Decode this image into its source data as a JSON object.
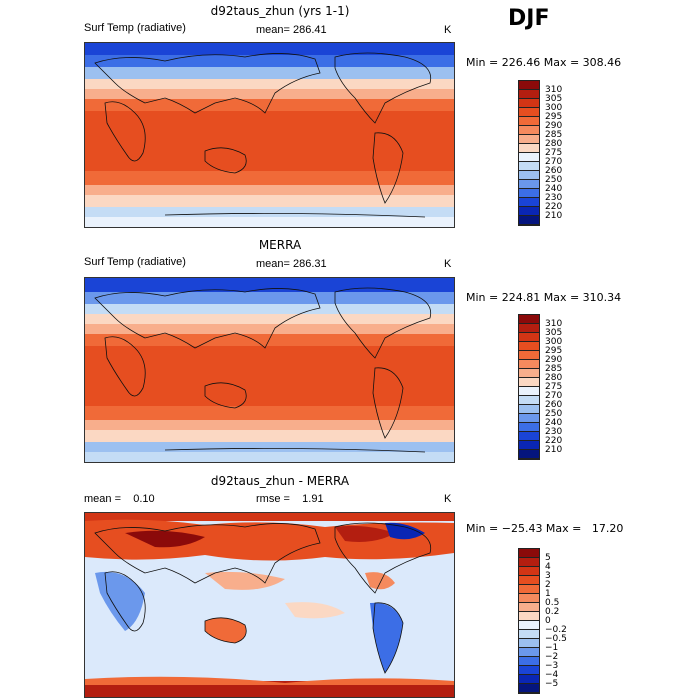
{
  "season": "DJF",
  "panels": [
    {
      "title": "d92taus_zhun (yrs 1-1)",
      "variable": "Surf Temp (radiative)",
      "stat": "mean= 286.41",
      "units": "K",
      "minmax": "Min = 226.46 Max = 308.46",
      "colorbar": {
        "labels": [
          "310",
          "305",
          "300",
          "295",
          "290",
          "285",
          "280",
          "275",
          "270",
          "260",
          "250",
          "240",
          "230",
          "220",
          "210"
        ],
        "colors": [
          "#8b0a0a",
          "#b31e10",
          "#d23515",
          "#e64e20",
          "#f06a38",
          "#f58a5e",
          "#f8ae8c",
          "#fbd8c3",
          "#eaf2fc",
          "#c4dcf5",
          "#9cc0f0",
          "#6b98ec",
          "#3c6ee6",
          "#1a44d6",
          "#0a26b4",
          "#05157e"
        ]
      }
    },
    {
      "title": "MERRA",
      "variable": "Surf Temp (radiative)",
      "stat": "mean= 286.31",
      "units": "K",
      "minmax": "Min = 224.81 Max = 310.34",
      "colorbar": {
        "labels": [
          "310",
          "305",
          "300",
          "295",
          "290",
          "285",
          "280",
          "275",
          "270",
          "260",
          "250",
          "240",
          "230",
          "220",
          "210"
        ],
        "colors": [
          "#8b0a0a",
          "#b31e10",
          "#d23515",
          "#e64e20",
          "#f06a38",
          "#f58a5e",
          "#f8ae8c",
          "#fbd8c3",
          "#eaf2fc",
          "#c4dcf5",
          "#9cc0f0",
          "#6b98ec",
          "#3c6ee6",
          "#1a44d6",
          "#0a26b4",
          "#05157e"
        ]
      }
    },
    {
      "title": "d92taus_zhun - MERRA",
      "stat_mean": "mean =    0.10",
      "stat_rmse": "rmse =    1.91",
      "units": "K",
      "minmax": "Min = −25.43 Max =   17.20",
      "colorbar": {
        "labels": [
          "5",
          "4",
          "3",
          "2",
          "1",
          "0.5",
          "0.2",
          "0",
          "−0.2",
          "−0.5",
          "−1",
          "−2",
          "−3",
          "−4",
          "−5"
        ],
        "colors": [
          "#8b0a0a",
          "#b31e10",
          "#d23515",
          "#e64e20",
          "#f06a38",
          "#f58a5e",
          "#f8ae8c",
          "#fbd8c3",
          "#eaf2fc",
          "#c4dcf5",
          "#9cc0f0",
          "#6b98ec",
          "#3c6ee6",
          "#1a44d6",
          "#0a26b4",
          "#05157e"
        ]
      }
    }
  ]
}
